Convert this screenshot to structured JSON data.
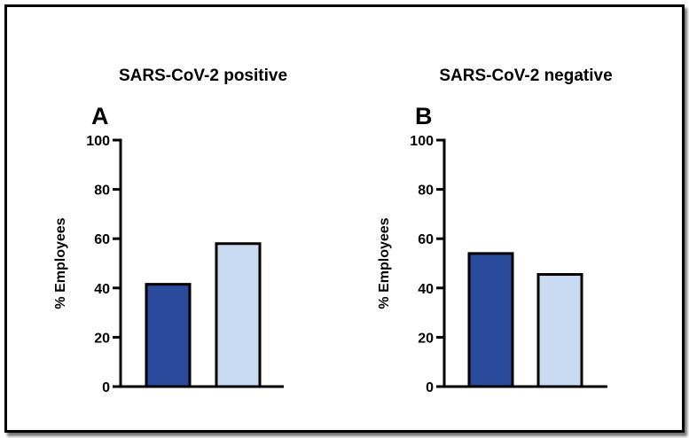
{
  "colors": {
    "dark_bar": "#2a4b9b",
    "light_bar": "#c8dbf2",
    "outline": "#000000"
  },
  "chart_data": [
    {
      "type": "bar",
      "title": "SARS-CoV-2 positive",
      "panel": "A",
      "ylabel": "% Employees",
      "ylim": [
        0,
        100
      ],
      "yticks": [
        "0",
        "20",
        "40",
        "60",
        "80",
        "100"
      ],
      "values": [
        41.5,
        58
      ],
      "bar_colors": [
        "dark",
        "light"
      ]
    },
    {
      "type": "bar",
      "title": "SARS-CoV-2 negative",
      "panel": "B",
      "ylabel": "% Employees",
      "ylim": [
        0,
        100
      ],
      "yticks": [
        "0",
        "20",
        "40",
        "60",
        "80",
        "100"
      ],
      "values": [
        54,
        45.5
      ],
      "bar_colors": [
        "dark",
        "light"
      ]
    }
  ]
}
